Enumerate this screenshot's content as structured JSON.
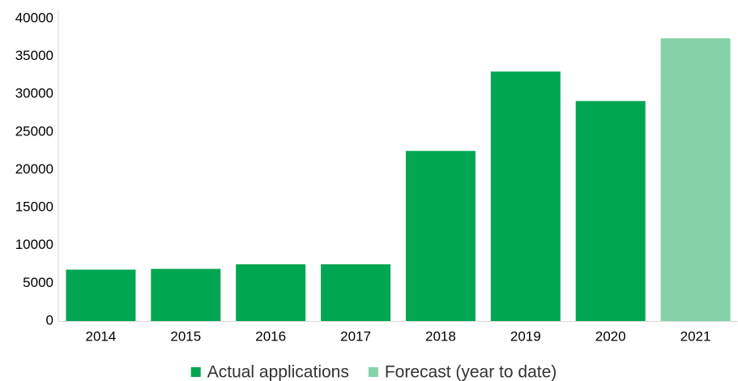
{
  "chart_data": {
    "type": "bar",
    "categories": [
      "2014",
      "2015",
      "2016",
      "2017",
      "2018",
      "2019",
      "2020",
      "2021"
    ],
    "series": [
      {
        "name": "Actual applications",
        "color": "#00a651",
        "values": [
          6800,
          6900,
          7500,
          7500,
          22500,
          33000,
          29100,
          null
        ]
      },
      {
        "name": "Forecast (year to date)",
        "color": "#85d2a8",
        "values": [
          null,
          null,
          null,
          null,
          null,
          null,
          null,
          37400
        ]
      }
    ],
    "ylim": [
      0,
      40000
    ],
    "yticks": [
      0,
      5000,
      10000,
      15000,
      20000,
      25000,
      30000,
      35000,
      40000
    ],
    "grid": false
  }
}
